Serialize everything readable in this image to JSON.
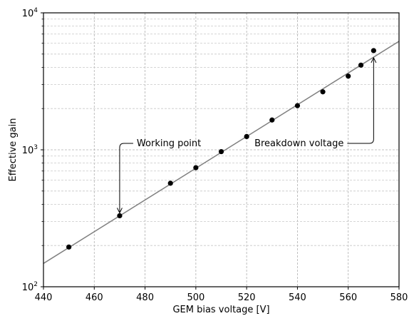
{
  "chart_data": {
    "type": "scatter",
    "title": "",
    "xlabel": "GEM bias voltage [V]",
    "ylabel": "Effective gain",
    "xlim": [
      440,
      580
    ],
    "ylim": [
      100,
      10000
    ],
    "y_scale": "log",
    "grid": true,
    "x_ticks": [
      440,
      460,
      480,
      500,
      520,
      540,
      560,
      580
    ],
    "y_ticks": [
      {
        "value": 100,
        "base": "10",
        "exp": "2"
      },
      {
        "value": 1000,
        "base": "10",
        "exp": "3"
      },
      {
        "value": 10000,
        "base": "10",
        "exp": "4"
      }
    ],
    "series": [
      {
        "marker": "dot",
        "color": "#000000",
        "x": [
          450,
          470,
          490,
          500,
          510,
          520,
          530,
          540,
          550,
          560,
          565,
          570
        ],
        "y": [
          195,
          330,
          570,
          740,
          970,
          1250,
          1650,
          2100,
          2650,
          3450,
          4150,
          5300
        ]
      }
    ],
    "fit_line": {
      "color": "#808080",
      "x": [
        440,
        580
      ],
      "y": [
        148,
        6200
      ]
    },
    "annotations": [
      {
        "text": "Working point",
        "x": 470,
        "y": 330
      },
      {
        "text": "Breakdown voltage",
        "x": 570,
        "y": 4700
      }
    ]
  }
}
